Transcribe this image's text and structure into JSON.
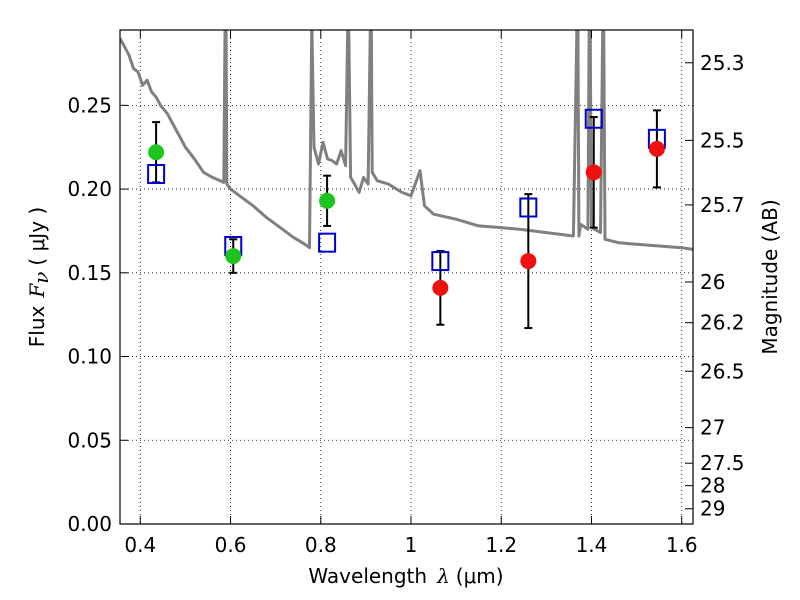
{
  "chart_data": {
    "type": "scatter",
    "title": "",
    "xlabel": {
      "text": "Wavelength",
      "symbol": "λ",
      "unit": "(μm)"
    },
    "ylabel": {
      "text": "Flux",
      "symbol": "F",
      "subscript": "ν",
      "unit": "( μJy )"
    },
    "y2label": "Magnitude (AB)",
    "xlim": [
      0.355,
      1.625
    ],
    "ylim": [
      0.0,
      0.295
    ],
    "grid": true,
    "x_ticks": [
      {
        "value": 0.4,
        "label": "0.4"
      },
      {
        "value": 0.6,
        "label": "0.6"
      },
      {
        "value": 0.8,
        "label": "0.8"
      },
      {
        "value": 1.0,
        "label": "1"
      },
      {
        "value": 1.2,
        "label": "1.2"
      },
      {
        "value": 1.4,
        "label": "1.4"
      },
      {
        "value": 1.6,
        "label": "1.6"
      }
    ],
    "y_ticks": [
      {
        "value": 0.0,
        "label": "0.00"
      },
      {
        "value": 0.05,
        "label": "0.05"
      },
      {
        "value": 0.1,
        "label": "0.10"
      },
      {
        "value": 0.15,
        "label": "0.15"
      },
      {
        "value": 0.2,
        "label": "0.20"
      },
      {
        "value": 0.25,
        "label": "0.25"
      }
    ],
    "y2_ticks": [
      {
        "mag": 25.3,
        "label": "25.3"
      },
      {
        "mag": 25.5,
        "label": "25.5"
      },
      {
        "mag": 25.7,
        "label": "25.7"
      },
      {
        "mag": 26,
        "label": "26"
      },
      {
        "mag": 26.2,
        "label": "26.2"
      },
      {
        "mag": 26.5,
        "label": "26.5"
      },
      {
        "mag": 27,
        "label": "27"
      },
      {
        "mag": 27.5,
        "label": "27.5"
      },
      {
        "mag": 28,
        "label": "28"
      },
      {
        "mag": 29,
        "label": "29"
      }
    ],
    "colors": {
      "green": "#1ec31e",
      "red": "#f01010",
      "blue": "#0000cc",
      "model": "#808080"
    },
    "series": [
      {
        "marker": "circle",
        "color": "#1ec31e",
        "points": [
          {
            "x": 0.435,
            "y": 0.222,
            "err": 0.018
          },
          {
            "x": 0.606,
            "y": 0.16,
            "err": 0.01
          },
          {
            "x": 0.814,
            "y": 0.193,
            "err": 0.015
          }
        ]
      },
      {
        "marker": "circle",
        "color": "#f01010",
        "points": [
          {
            "x": 1.065,
            "y": 0.141,
            "err": 0.022
          },
          {
            "x": 1.26,
            "y": 0.157,
            "err": 0.04
          },
          {
            "x": 1.405,
            "y": 0.21,
            "err": 0.033
          },
          {
            "x": 1.545,
            "y": 0.224,
            "err": 0.023
          }
        ]
      },
      {
        "marker": "square",
        "color": "#0000cc",
        "points": [
          {
            "x": 0.435,
            "y": 0.209
          },
          {
            "x": 0.606,
            "y": 0.166
          },
          {
            "x": 0.814,
            "y": 0.168
          },
          {
            "x": 1.065,
            "y": 0.157
          },
          {
            "x": 1.26,
            "y": 0.189
          },
          {
            "x": 1.405,
            "y": 0.242
          },
          {
            "x": 1.545,
            "y": 0.23
          }
        ]
      },
      {
        "type": "line",
        "color": "#808080",
        "x": [
          0.355,
          0.365,
          0.375,
          0.385,
          0.395,
          0.405,
          0.415,
          0.425,
          0.435,
          0.445,
          0.46,
          0.48,
          0.5,
          0.52,
          0.54,
          0.56,
          0.585,
          0.588,
          0.59,
          0.592,
          0.6,
          0.62,
          0.65,
          0.68,
          0.71,
          0.74,
          0.765,
          0.775,
          0.78,
          0.785,
          0.795,
          0.805,
          0.815,
          0.825,
          0.835,
          0.845,
          0.855,
          0.86,
          0.862,
          0.866,
          0.875,
          0.885,
          0.895,
          0.905,
          0.91,
          0.912,
          0.914,
          0.925,
          0.95,
          0.98,
          1.0,
          1.02,
          1.03,
          1.05,
          1.1,
          1.15,
          1.2,
          1.24,
          1.27,
          1.3,
          1.36,
          1.368,
          1.37,
          1.372,
          1.376,
          1.392,
          1.395,
          1.397,
          1.4,
          1.42,
          1.425,
          1.427,
          1.43,
          1.46,
          1.5,
          1.55,
          1.6,
          1.625
        ],
        "y": [
          0.29,
          0.285,
          0.28,
          0.272,
          0.27,
          0.262,
          0.265,
          0.258,
          0.255,
          0.25,
          0.245,
          0.235,
          0.225,
          0.218,
          0.21,
          0.207,
          0.204,
          0.3,
          0.3,
          0.203,
          0.2,
          0.196,
          0.19,
          0.183,
          0.177,
          0.171,
          0.167,
          0.165,
          0.3,
          0.225,
          0.215,
          0.228,
          0.218,
          0.217,
          0.215,
          0.223,
          0.214,
          0.3,
          0.3,
          0.207,
          0.203,
          0.198,
          0.207,
          0.203,
          0.3,
          0.3,
          0.21,
          0.205,
          0.203,
          0.198,
          0.196,
          0.211,
          0.19,
          0.185,
          0.182,
          0.178,
          0.177,
          0.176,
          0.175,
          0.174,
          0.172,
          0.3,
          0.3,
          0.172,
          0.179,
          0.176,
          0.3,
          0.3,
          0.177,
          0.174,
          0.3,
          0.3,
          0.17,
          0.168,
          0.167,
          0.166,
          0.165,
          0.164
        ]
      }
    ]
  }
}
